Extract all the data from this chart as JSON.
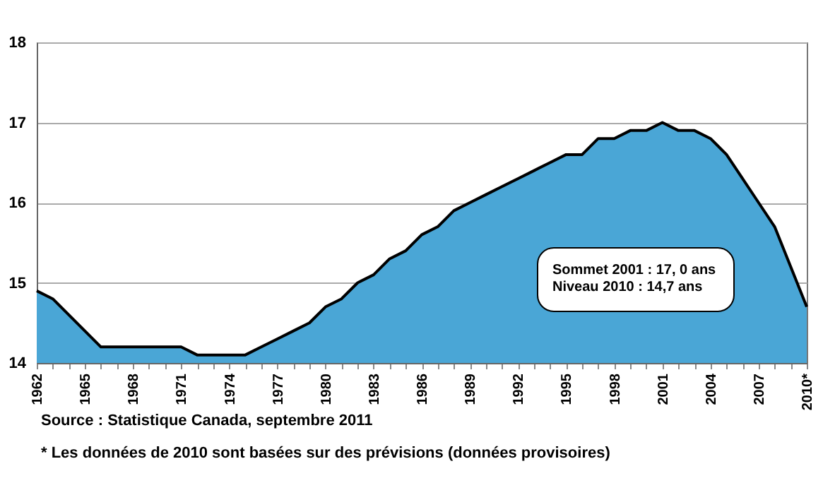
{
  "chart_data": {
    "type": "area",
    "categories": [
      "1962",
      null,
      null,
      "1965",
      null,
      null,
      "1968",
      null,
      null,
      "1971",
      null,
      null,
      "1974",
      null,
      null,
      "1977",
      null,
      null,
      "1980",
      null,
      null,
      "1983",
      null,
      null,
      "1986",
      null,
      null,
      "1989",
      null,
      null,
      "1992",
      null,
      null,
      "1995",
      null,
      null,
      "1998",
      null,
      null,
      "2001",
      null,
      null,
      "2004",
      null,
      null,
      "2007",
      null,
      null,
      "2010*"
    ],
    "series": [
      {
        "color": "#4aa6d6",
        "values": [
          14.9,
          14.8,
          14.6,
          14.4,
          14.2,
          14.2,
          14.2,
          14.2,
          14.2,
          14.2,
          14.1,
          14.1,
          14.1,
          14.1,
          14.2,
          14.3,
          14.4,
          14.5,
          14.7,
          14.8,
          15.0,
          15.1,
          15.3,
          15.4,
          15.6,
          15.7,
          15.9,
          16.0,
          16.1,
          16.2,
          16.3,
          16.4,
          16.5,
          16.6,
          16.6,
          16.8,
          16.8,
          16.9,
          16.9,
          17.0,
          16.9,
          16.9,
          16.8,
          16.6,
          16.3,
          16.0,
          15.7,
          15.2,
          14.7
        ]
      }
    ],
    "ylim": [
      14,
      18
    ],
    "yticks": [
      14,
      15,
      16,
      17,
      18
    ],
    "grid": "y",
    "annotations": [
      "Sommet 2001 : 17, 0 ans",
      "Niveau 2010 : 14,7 ans",
      "Source : Statistique Canada, septembre 2011",
      "* Les données de 2010 sont basées sur des prévisions (données provisoires)"
    ]
  }
}
